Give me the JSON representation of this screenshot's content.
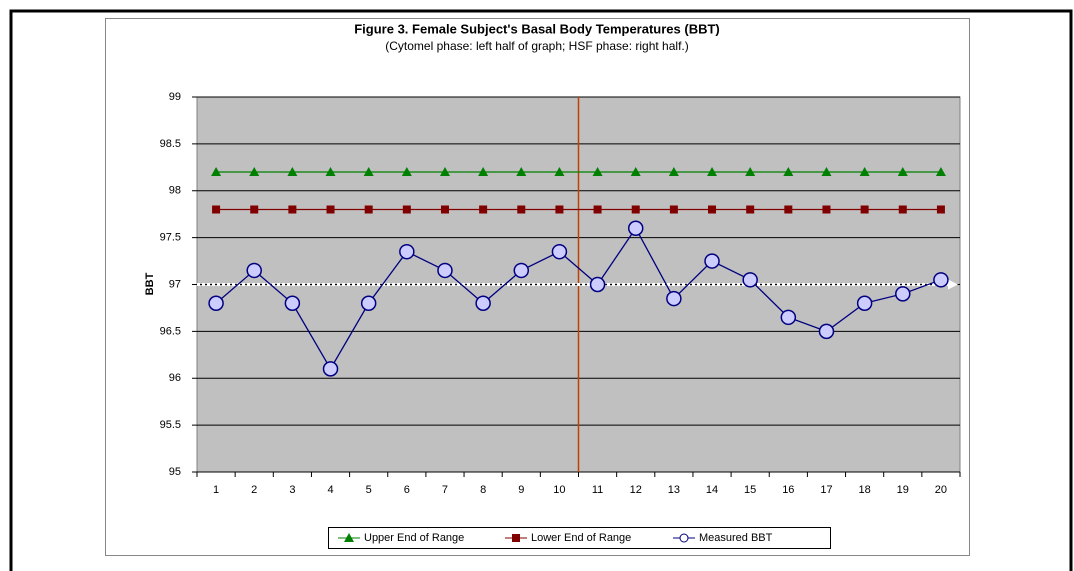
{
  "chart_data": {
    "type": "line",
    "title": "Figure 3. Female Subject's Basal Body Temperatures (BBT)",
    "subtitle": "(Cytomel phase: left half of graph; HSF phase: right half.)",
    "y_label": "BBT",
    "categories": [
      "1",
      "2",
      "3",
      "4",
      "5",
      "6",
      "7",
      "8",
      "9",
      "10",
      "11",
      "12",
      "13",
      "14",
      "15",
      "16",
      "17",
      "18",
      "19",
      "20"
    ],
    "series": [
      {
        "name": "Upper End of Range",
        "color": "#008000",
        "marker": "triangle",
        "values": [
          98.2,
          98.2,
          98.2,
          98.2,
          98.2,
          98.2,
          98.2,
          98.2,
          98.2,
          98.2,
          98.2,
          98.2,
          98.2,
          98.2,
          98.2,
          98.2,
          98.2,
          98.2,
          98.2,
          98.2
        ]
      },
      {
        "name": "Lower End of Range",
        "color": "#800000",
        "marker": "square",
        "values": [
          97.8,
          97.8,
          97.8,
          97.8,
          97.8,
          97.8,
          97.8,
          97.8,
          97.8,
          97.8,
          97.8,
          97.8,
          97.8,
          97.8,
          97.8,
          97.8,
          97.8,
          97.8,
          97.8,
          97.8
        ]
      },
      {
        "name": "Measured BBT",
        "color": "#000080",
        "marker": "circle",
        "values": [
          96.8,
          97.15,
          96.8,
          96.1,
          96.8,
          97.35,
          97.15,
          96.8,
          97.15,
          97.35,
          97.0,
          97.6,
          96.85,
          97.25,
          97.05,
          96.65,
          96.5,
          96.8,
          96.9,
          97.05
        ]
      }
    ],
    "reference_line": 97,
    "ylim": [
      95,
      99
    ],
    "yticks": [
      95,
      95.5,
      96,
      96.5,
      97,
      97.5,
      98,
      98.5,
      99
    ],
    "grid": true,
    "legend": "bottom"
  }
}
